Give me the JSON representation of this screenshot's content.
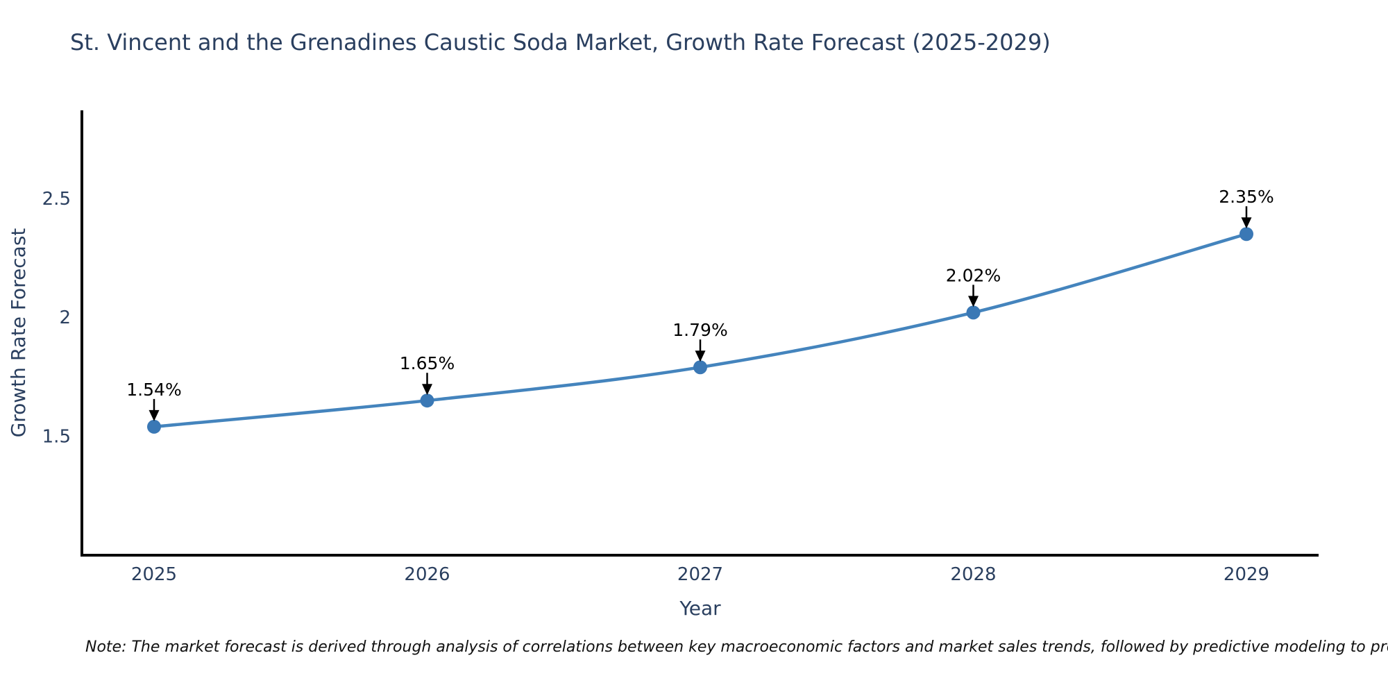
{
  "note": {
    "text": "Note: The market forecast is derived through analysis of correlations between key macroeconomic factors and market sales trends, followed by predictive modeling to project future sales"
  },
  "chart_data": {
    "type": "line",
    "title": "St. Vincent and the Grenadines Caustic Soda Market, Growth Rate Forecast (2025-2029)",
    "x": [
      2025,
      2026,
      2027,
      2028,
      2029
    ],
    "values": [
      1.54,
      1.65,
      1.79,
      2.02,
      2.35
    ],
    "point_labels": [
      "1.54%",
      "1.65%",
      "1.79%",
      "2.02%",
      "2.35%"
    ],
    "xlabel": "Year",
    "ylabel": "Growth Rate Forecast",
    "ylim": [
      1.0,
      2.87
    ],
    "yticks": [
      1.5,
      2,
      2.5
    ],
    "grid": false,
    "legend": null,
    "line_shape": "spline",
    "markers": "circle",
    "colors": {
      "line": "#4484bd",
      "marker": "#3a78b5",
      "axis": "#000000",
      "tick_text": "#2a3f5f",
      "axis_title_text": "#2a3f5f",
      "title_text": "#2a3f5f",
      "annotation_text": "#000000",
      "annotation_arrow": "#000000",
      "background": "#ffffff"
    }
  }
}
